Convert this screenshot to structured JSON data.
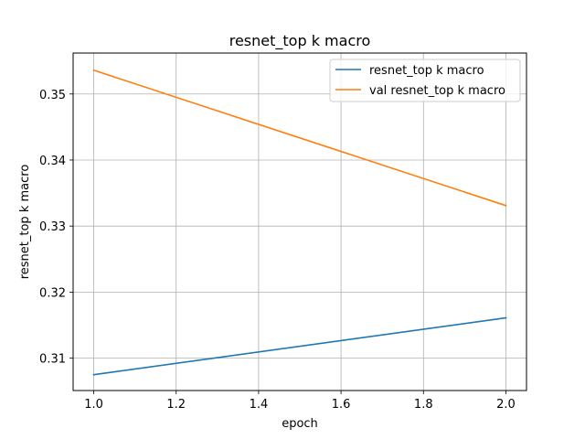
{
  "chart_data": {
    "type": "line",
    "title": "resnet_top k macro",
    "xlabel": "epoch",
    "ylabel": "resnet_top k macro",
    "xlim": [
      0.95,
      2.05
    ],
    "ylim": [
      0.3051,
      0.3562
    ],
    "xticks": [
      1.0,
      1.2,
      1.4,
      1.6,
      1.8,
      2.0
    ],
    "xtick_labels": [
      "1.0",
      "1.2",
      "1.4",
      "1.6",
      "1.8",
      "2.0"
    ],
    "yticks": [
      0.31,
      0.32,
      0.33,
      0.34,
      0.35
    ],
    "ytick_labels": [
      "0.31",
      "0.32",
      "0.33",
      "0.34",
      "0.35"
    ],
    "grid": true,
    "legend_position": "top-right",
    "series": [
      {
        "name": "resnet_top k macro",
        "color": "#1f77b4",
        "x": [
          1.0,
          2.0
        ],
        "y": [
          0.3075,
          0.3161
        ]
      },
      {
        "name": "val resnet_top k macro",
        "color": "#ff7f0e",
        "x": [
          1.0,
          2.0
        ],
        "y": [
          0.3536,
          0.3331
        ]
      }
    ]
  }
}
